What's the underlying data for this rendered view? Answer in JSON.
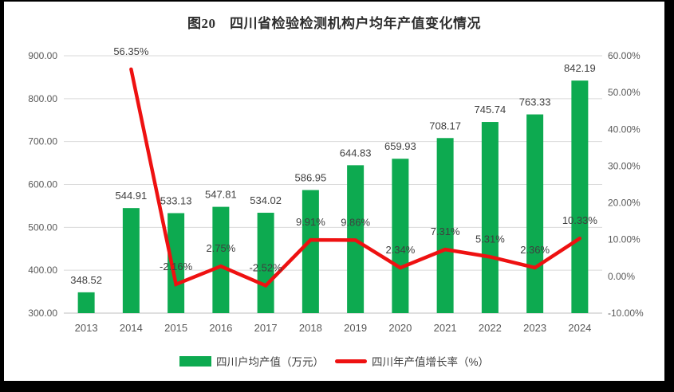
{
  "title": "图20　四川省检验检测机构户均年产值变化情况",
  "colors": {
    "background": "#000000",
    "chart_bg": "#ffffff",
    "bar": "#0DAA50",
    "line": "#EE1111",
    "gridline": "#D9D9D9",
    "axis_line": "#BFBFBF",
    "label_text": "#3F3F3F",
    "tick_text": "#595959",
    "title_text": "#2E2E2E"
  },
  "chart_data": {
    "type": "bar+line",
    "title": "图20　四川省检验检测机构户均年产值变化情况",
    "categories": [
      "2013",
      "2014",
      "2015",
      "2016",
      "2017",
      "2018",
      "2019",
      "2020",
      "2021",
      "2022",
      "2023",
      "2024"
    ],
    "series": [
      {
        "name": "四川户均产值（万元）",
        "type": "bar",
        "axis": "left",
        "values": [
          348.52,
          544.91,
          533.13,
          547.81,
          534.02,
          586.95,
          644.83,
          659.93,
          708.17,
          745.74,
          763.33,
          842.19
        ],
        "labels": [
          "348.52",
          "544.91",
          "533.13",
          "547.81",
          "534.02",
          "586.95",
          "644.83",
          "659.93",
          "708.17",
          "745.74",
          "763.33",
          "842.19"
        ]
      },
      {
        "name": "四川年产值增长率（%）",
        "type": "line",
        "axis": "right",
        "values": [
          null,
          56.35,
          -2.16,
          2.75,
          -2.52,
          9.91,
          9.86,
          2.34,
          7.31,
          5.31,
          2.36,
          10.33
        ],
        "labels": [
          null,
          "56.35%",
          "-2.16%",
          "2.75%",
          "-2.52%",
          "9.91%",
          "9.86%",
          "2.34%",
          "7.31%",
          "5.31%",
          "2.36%",
          "10.33%"
        ]
      }
    ],
    "left_axis": {
      "min": 300,
      "max": 900,
      "step": 100,
      "tick_labels": [
        "300.00",
        "400.00",
        "500.00",
        "600.00",
        "700.00",
        "800.00",
        "900.00"
      ]
    },
    "right_axis": {
      "min": -10,
      "max": 60,
      "step": 10,
      "tick_labels": [
        "-10.00%",
        "0.00%",
        "10.00%",
        "20.00%",
        "30.00%",
        "40.00%",
        "50.00%",
        "60.00%"
      ]
    },
    "grid": true,
    "legend_position": "bottom"
  }
}
